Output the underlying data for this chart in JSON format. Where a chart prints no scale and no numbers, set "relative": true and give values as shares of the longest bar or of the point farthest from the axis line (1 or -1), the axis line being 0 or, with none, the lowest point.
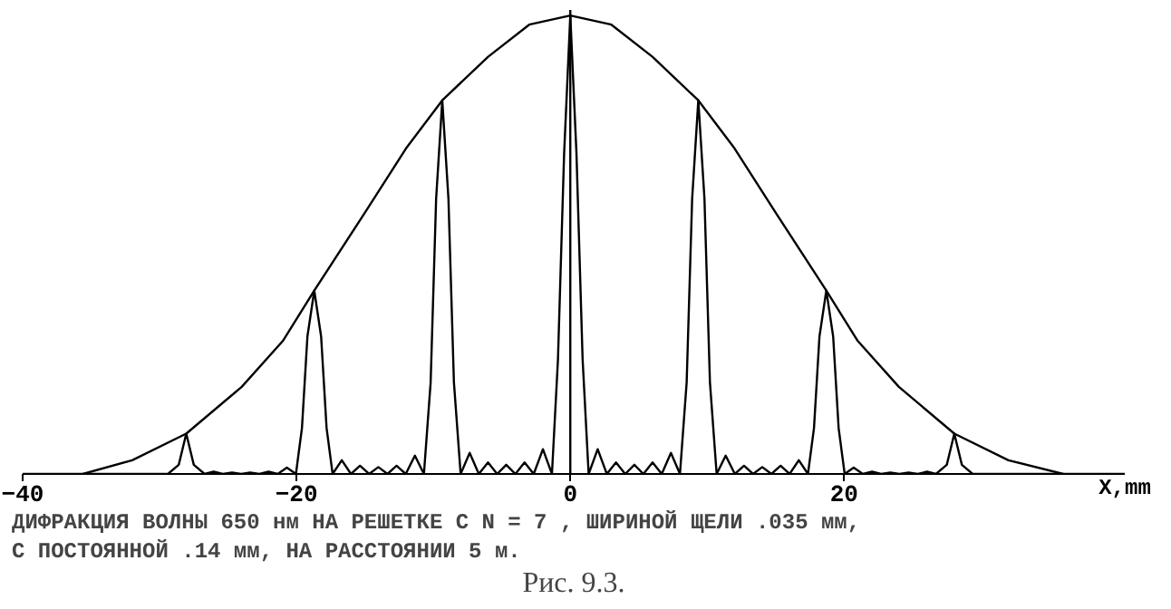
{
  "chart_data": {
    "type": "line",
    "relative": true,
    "xlabel": "X,mm",
    "xlim": [
      -40,
      40.5
    ],
    "xticks": [
      -40,
      -20,
      0,
      20
    ],
    "grid": false,
    "marker": "none",
    "ref_lines": [
      {
        "axis": "x",
        "value": 0
      }
    ],
    "line_style": "solid",
    "annotations": [
      "ДИФРАКЦИЯ ВОЛНЫ 650 нм НА РЕШЕТКЕ С N = 7 , ШИРИНОЙ ЩЕЛИ .035 мм,",
      "С ПОСТОЯННОЙ .14 мм, НА РАССТОЯНИИ 5 м.",
      "Рис. 9.3."
    ],
    "series": [
      {
        "color": "#000000",
        "x": [
          -35.6,
          -32,
          -28.05,
          -24,
          -21,
          -18.7,
          -15,
          -12,
          -9.35,
          -6,
          -3,
          0,
          3,
          6,
          9.35,
          12,
          15,
          18.7,
          21,
          24,
          28.05,
          32,
          36
        ],
        "values": [
          0,
          0.03,
          0.088,
          0.19,
          0.29,
          0.4,
          0.57,
          0.71,
          0.815,
          0.91,
          0.98,
          1,
          0.98,
          0.91,
          0.815,
          0.71,
          0.57,
          0.4,
          0.29,
          0.19,
          0.088,
          0.03,
          0
        ]
      },
      {
        "color": "#000000",
        "x": [
          -40,
          -36,
          -29.39,
          -28.6,
          -28.05,
          -27.5,
          -26.71,
          -26.05,
          -25.38,
          -24.71,
          -24.04,
          -23.38,
          -22.71,
          -22.04,
          -21.37,
          -20.7,
          -20.04,
          -19.6,
          -19.2,
          -18.7,
          -18.2,
          -17.8,
          -17.36,
          -16.69,
          -16.02,
          -15.36,
          -14.69,
          -14.02,
          -13.35,
          -12.69,
          -12.02,
          -11.35,
          -10.69,
          -10.2,
          -9.8,
          -9.35,
          -8.9,
          -8.5,
          -8.01,
          -7.35,
          -6.68,
          -6.01,
          -5.34,
          -4.68,
          -4.01,
          -3.34,
          -2.67,
          -2.0,
          -1.34,
          -0.9,
          -0.45,
          0,
          0.45,
          0.9,
          1.34,
          2.0,
          2.67,
          3.34,
          4.01,
          4.68,
          5.34,
          6.01,
          6.68,
          7.35,
          8.01,
          8.5,
          8.9,
          9.35,
          9.8,
          10.2,
          10.69,
          11.35,
          12.02,
          12.69,
          13.35,
          14.02,
          14.69,
          15.36,
          16.02,
          16.69,
          17.36,
          17.8,
          18.2,
          18.7,
          19.2,
          19.6,
          20.04,
          20.7,
          21.37,
          22.04,
          22.71,
          23.38,
          24.04,
          24.71,
          25.38,
          26.05,
          26.71,
          27.5,
          28.05,
          28.6,
          29.39,
          36,
          40.5
        ],
        "values": [
          0,
          0,
          0,
          0.02,
          0.088,
          0.02,
          0,
          0.005,
          0,
          0.003,
          0,
          0.003,
          0,
          0.005,
          0,
          0.014,
          0,
          0.1,
          0.3,
          0.4,
          0.3,
          0.1,
          0,
          0.03,
          0,
          0.018,
          0,
          0.015,
          0,
          0.018,
          0,
          0.04,
          0,
          0.2,
          0.6,
          0.815,
          0.6,
          0.2,
          0,
          0.046,
          0,
          0.025,
          0,
          0.02,
          0,
          0.025,
          0,
          0.054,
          0,
          0.25,
          0.7,
          1,
          0.7,
          0.25,
          0,
          0.054,
          0,
          0.025,
          0,
          0.02,
          0,
          0.025,
          0,
          0.046,
          0,
          0.2,
          0.6,
          0.815,
          0.6,
          0.2,
          0,
          0.04,
          0,
          0.018,
          0,
          0.015,
          0,
          0.018,
          0,
          0.03,
          0,
          0.1,
          0.3,
          0.4,
          0.3,
          0.1,
          0,
          0.014,
          0,
          0.005,
          0,
          0.003,
          0,
          0.003,
          0,
          0.005,
          0,
          0.02,
          0.088,
          0.02,
          0,
          0,
          0
        ]
      }
    ]
  }
}
